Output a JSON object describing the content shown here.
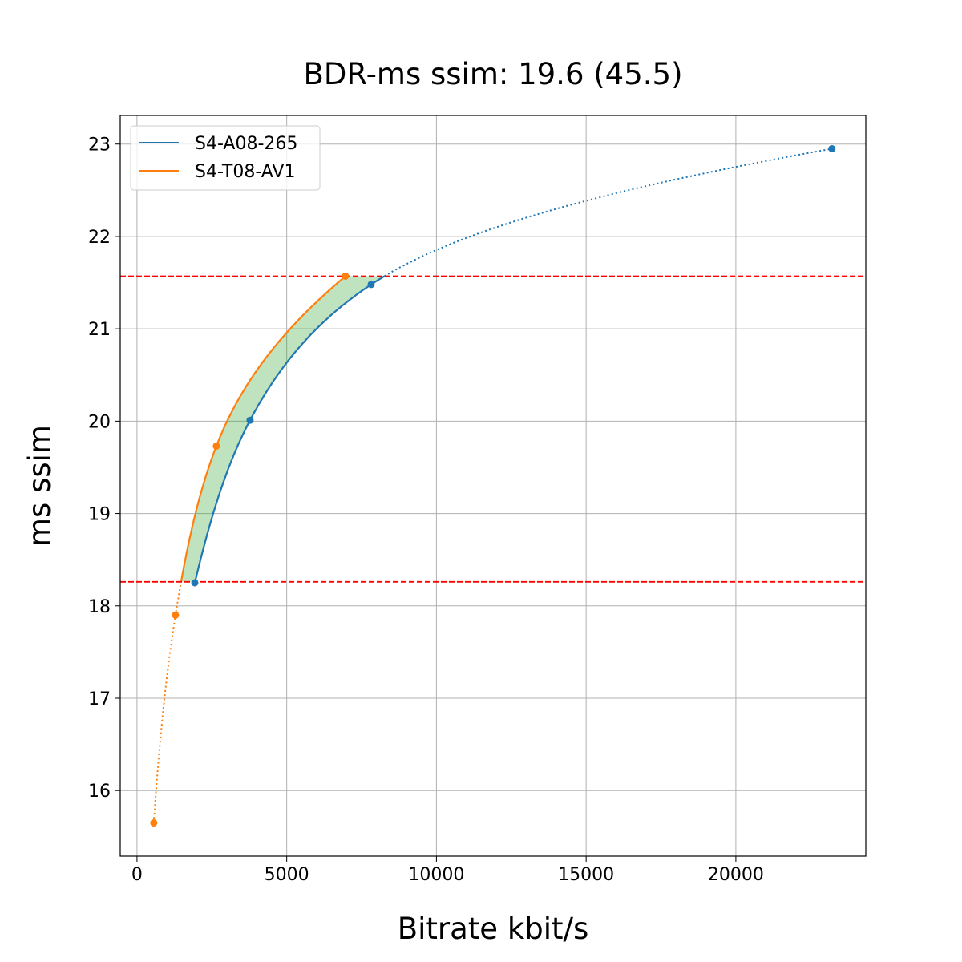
{
  "chart_data": {
    "type": "line",
    "title": "BDR-ms ssim: 19.6 (45.5)",
    "xlabel": "Bitrate kbit/s",
    "ylabel": "ms ssim",
    "xlim": [
      -560,
      24340
    ],
    "ylim": [
      15.29,
      23.31
    ],
    "xticks": [
      0,
      5000,
      10000,
      15000,
      20000
    ],
    "xtick_labels": [
      "0",
      "5000",
      "10000",
      "15000",
      "20000"
    ],
    "yticks": [
      16,
      17,
      18,
      19,
      20,
      21,
      22,
      23
    ],
    "ytick_labels": [
      "16",
      "17",
      "18",
      "19",
      "20",
      "21",
      "22",
      "23"
    ],
    "grid": true,
    "legend_placement": "top-left",
    "series": [
      {
        "name": "S4-A08-265",
        "color": "#1f77b4",
        "x": [
          1930,
          3775,
          7820,
          23210
        ],
        "y": [
          18.25,
          20.01,
          21.48,
          22.95
        ]
      },
      {
        "name": "S4-T08-AV1",
        "color": "#ff7f0e",
        "x": [
          560,
          1285,
          2650,
          6960
        ],
        "y": [
          15.65,
          17.9,
          19.73,
          21.57
        ]
      }
    ],
    "reference_lines": {
      "y": [
        18.26,
        21.57
      ],
      "color": "#ff0000",
      "style": "dashed"
    },
    "fill_between": {
      "color": "#2ca02c",
      "opacity": 0.3,
      "y_range": [
        18.26,
        21.57
      ]
    }
  }
}
